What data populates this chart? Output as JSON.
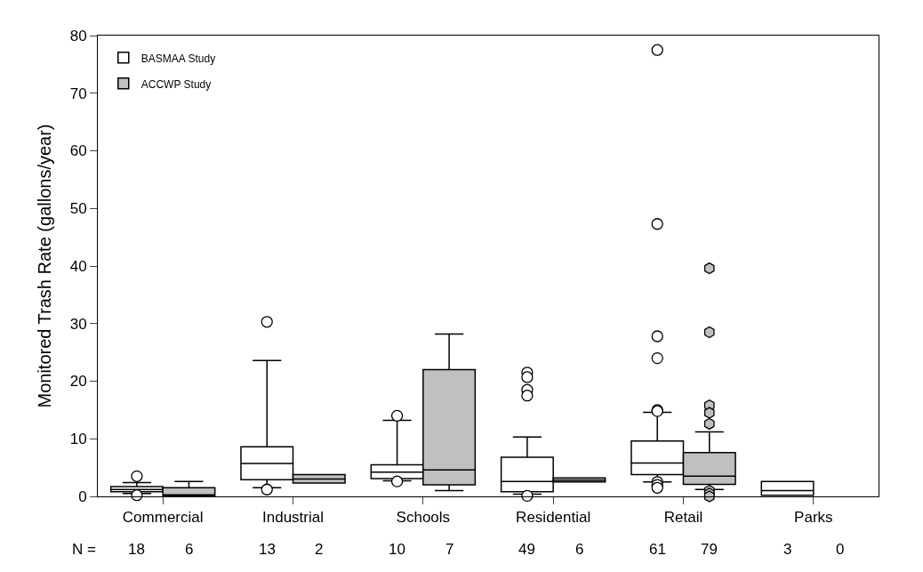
{
  "chart_data": {
    "type": "box",
    "ylabel": "Monitored Trash Rate (gallons/year)",
    "categories": [
      "Commercial",
      "Industrial",
      "Schools",
      "Residential",
      "Retail",
      "Parks"
    ],
    "ylim": [
      0,
      80
    ],
    "yticks": [
      0,
      10,
      20,
      30,
      40,
      50,
      60,
      70,
      80
    ],
    "legend": "top left",
    "series": [
      {
        "name": "BASMAA Study",
        "color": "#ffffff",
        "boxes": [
          {
            "low": 0.5,
            "q1": 0.8,
            "median": 1.2,
            "q3": 1.7,
            "high": 2.4,
            "outliers": [
              3.5,
              0.2
            ]
          },
          {
            "low": 1.5,
            "q1": 2.9,
            "median": 5.7,
            "q3": 8.6,
            "high": 23.6,
            "outliers": [
              30.3,
              1.2
            ]
          },
          {
            "low": 2.7,
            "q1": 3.1,
            "median": 4.2,
            "q3": 5.5,
            "high": 13.2,
            "outliers": [
              14.0,
              2.6
            ]
          },
          {
            "low": 0.4,
            "q1": 0.8,
            "median": 2.6,
            "q3": 6.8,
            "high": 10.3,
            "outliers": [
              21.5,
              20.7,
              18.5,
              17.5,
              0.1
            ]
          },
          {
            "low": 2.5,
            "q1": 3.8,
            "median": 5.8,
            "q3": 9.6,
            "high": 14.6,
            "outliers": [
              77.5,
              47.3,
              27.8,
              24.0,
              15.0,
              14.8,
              2.5,
              2.0,
              1.5
            ]
          },
          {
            "low": 0.2,
            "q1": 0.2,
            "median": 1.0,
            "q3": 2.6,
            "high": 2.6
          }
        ]
      },
      {
        "name": "ACCWP Study",
        "color": "#c0c0c0",
        "boxes": [
          {
            "low": 0.0,
            "q1": 0.1,
            "median": 0.2,
            "q3": 1.5,
            "high": 2.6
          },
          {
            "low": 2.3,
            "q1": 2.3,
            "median": 3.0,
            "q3": 3.8,
            "high": 3.8
          },
          {
            "low": 1.0,
            "q1": 2.0,
            "median": 4.6,
            "q3": 22.0,
            "high": 28.2
          },
          {
            "low": 2.5,
            "q1": 2.5,
            "median": 2.8,
            "q3": 3.2,
            "high": 3.2
          },
          {
            "low": 1.2,
            "q1": 2.1,
            "median": 3.5,
            "q3": 7.6,
            "high": 11.2,
            "outliers": [
              39.6,
              28.5,
              15.8,
              14.5,
              12.6,
              1.0,
              0.5,
              0.0
            ]
          },
          null
        ]
      }
    ],
    "annotations": [
      "N =",
      "18",
      "6",
      "13",
      "2",
      "10",
      "7",
      "49",
      "6",
      "61",
      "79",
      "3",
      "0"
    ]
  }
}
